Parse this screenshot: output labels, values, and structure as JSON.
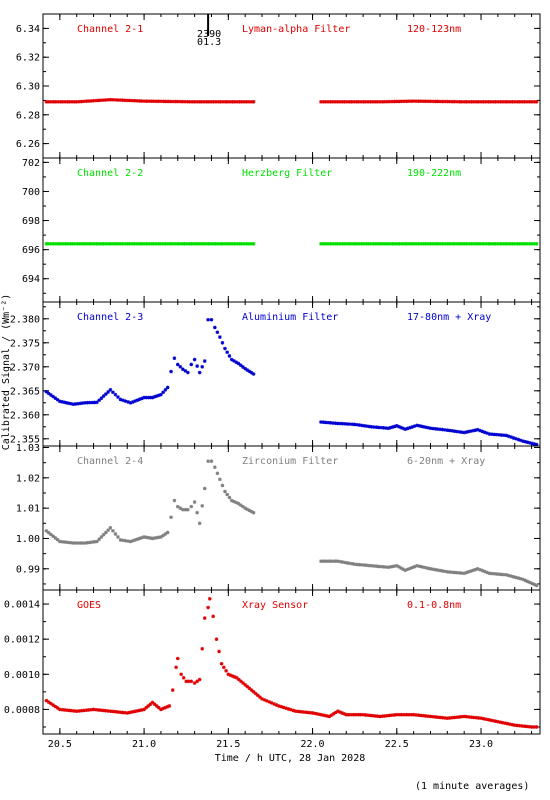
{
  "ylabel": "Calibrated Signal / (Wm⁻²)",
  "xlabel": "Time / h UTC, 28 Jan 2028",
  "footnote": "(1 minute averages)",
  "marker": {
    "x": 21.38,
    "label_top": "2390",
    "label_bottom": "01.3"
  },
  "xaxis": {
    "min": 20.4,
    "max": 23.35,
    "ticks": [
      "20.5",
      "21.0",
      "21.5",
      "22.0",
      "22.5",
      "23.0"
    ]
  },
  "chart_data": [
    {
      "type": "scatter",
      "channel": "Channel 2-1",
      "filter": "Lyman-alpha Filter",
      "band": "120-123nm",
      "color": "#e00000",
      "ylim": [
        6.25,
        6.35
      ],
      "yticks": [
        "6.26",
        "6.28",
        "6.30",
        "6.32",
        "6.34"
      ],
      "series_kind": "flat",
      "segments": [
        {
          "points": [
            [
              20.42,
              6.289
            ],
            [
              20.6,
              6.289
            ],
            [
              20.8,
              6.2905
            ],
            [
              21.0,
              6.2895
            ],
            [
              21.3,
              6.289
            ],
            [
              21.65,
              6.289
            ]
          ]
        },
        {
          "points": [
            [
              22.05,
              6.289
            ],
            [
              22.4,
              6.289
            ],
            [
              22.6,
              6.2895
            ],
            [
              22.9,
              6.289
            ],
            [
              23.33,
              6.289
            ]
          ]
        }
      ]
    },
    {
      "type": "scatter",
      "channel": "Channel 2-2",
      "filter": "Herzberg Filter",
      "band": "190-222nm",
      "color": "#00e000",
      "ylim": [
        692.4,
        702.3
      ],
      "yticks": [
        "694",
        "696",
        "698",
        "700",
        "702"
      ],
      "series_kind": "flat",
      "segments": [
        {
          "points": [
            [
              20.42,
              696.4
            ],
            [
              21.0,
              696.4
            ],
            [
              21.65,
              696.4
            ]
          ]
        },
        {
          "points": [
            [
              22.05,
              696.4
            ],
            [
              22.7,
              696.4
            ],
            [
              23.33,
              696.4
            ]
          ]
        }
      ]
    },
    {
      "type": "scatter",
      "channel": "Channel 2-3",
      "filter": "Aluminium Filter",
      "band": "17-80nm + Xray",
      "color": "#0000d0",
      "ylim": [
        2.3535,
        2.3835
      ],
      "yticks": [
        "2.355",
        "2.360",
        "2.365",
        "2.370",
        "2.375",
        "2.380"
      ],
      "segments": [
        {
          "points": [
            [
              20.42,
              2.3648
            ],
            [
              20.5,
              2.3628
            ],
            [
              20.58,
              2.3622
            ],
            [
              20.65,
              2.3625
            ],
            [
              20.72,
              2.3626
            ],
            [
              20.8,
              2.3652
            ],
            [
              20.86,
              2.3632
            ],
            [
              20.92,
              2.3625
            ],
            [
              21.0,
              2.3636
            ],
            [
              21.05,
              2.3636
            ],
            [
              21.1,
              2.3642
            ],
            [
              21.14,
              2.3657
            ]
          ]
        },
        {
          "points": [
            [
              21.16,
              2.369
            ],
            [
              21.18,
              2.3718
            ],
            [
              21.2,
              2.3705
            ],
            [
              21.23,
              2.3695
            ],
            [
              21.26,
              2.3688
            ],
            [
              21.28,
              2.3705
            ],
            [
              21.3,
              2.3715
            ],
            [
              21.33,
              2.3688
            ],
            [
              21.36,
              2.3712
            ],
            [
              21.38,
              2.3798
            ],
            [
              21.4,
              2.3798
            ],
            [
              21.42,
              2.3782
            ],
            [
              21.45,
              2.3762
            ],
            [
              21.48,
              2.3738
            ],
            [
              21.52,
              2.3715
            ],
            [
              21.56,
              2.3707
            ],
            [
              21.6,
              2.3696
            ],
            [
              21.65,
              2.3685
            ]
          ]
        },
        {
          "points": [
            [
              22.05,
              2.3585
            ],
            [
              22.15,
              2.3582
            ],
            [
              22.25,
              2.358
            ],
            [
              22.35,
              2.3575
            ],
            [
              22.45,
              2.3572
            ],
            [
              22.5,
              2.3577
            ],
            [
              22.55,
              2.357
            ],
            [
              22.62,
              2.3578
            ],
            [
              22.7,
              2.3572
            ],
            [
              22.8,
              2.3568
            ],
            [
              22.9,
              2.3563
            ],
            [
              22.98,
              2.3569
            ],
            [
              23.05,
              2.356
            ],
            [
              23.15,
              2.3557
            ],
            [
              23.25,
              2.3545
            ],
            [
              23.33,
              2.3538
            ]
          ]
        }
      ]
    },
    {
      "type": "scatter",
      "channel": "Channel 2-4",
      "filter": "Zirconium Filter",
      "band": "6-20nm + Xray",
      "color": "#808080",
      "ylim": [
        0.983,
        1.0305
      ],
      "yticks": [
        "0.99",
        "1.00",
        "1.01",
        "1.02",
        "1.03"
      ],
      "segments": [
        {
          "points": [
            [
              20.42,
              1.0025
            ],
            [
              20.5,
              0.999
            ],
            [
              20.58,
              0.9985
            ],
            [
              20.65,
              0.9985
            ],
            [
              20.72,
              0.999
            ],
            [
              20.8,
              1.0035
            ],
            [
              20.86,
              0.9995
            ],
            [
              20.92,
              0.999
            ],
            [
              21.0,
              1.0005
            ],
            [
              21.05,
              1.0
            ],
            [
              21.1,
              1.0005
            ],
            [
              21.14,
              1.002
            ]
          ]
        },
        {
          "points": [
            [
              21.16,
              1.007
            ],
            [
              21.18,
              1.0125
            ],
            [
              21.2,
              1.0105
            ],
            [
              21.23,
              1.0095
            ],
            [
              21.26,
              1.0095
            ],
            [
              21.28,
              1.0105
            ],
            [
              21.3,
              1.012
            ],
            [
              21.33,
              1.005
            ],
            [
              21.36,
              1.0165
            ],
            [
              21.38,
              1.0255
            ],
            [
              21.4,
              1.0255
            ],
            [
              21.42,
              1.0235
            ],
            [
              21.45,
              1.0195
            ],
            [
              21.48,
              1.0155
            ],
            [
              21.52,
              1.0125
            ],
            [
              21.56,
              1.0115
            ],
            [
              21.6,
              1.01
            ],
            [
              21.65,
              1.0085
            ]
          ]
        },
        {
          "points": [
            [
              22.05,
              0.9925
            ],
            [
              22.15,
              0.9925
            ],
            [
              22.25,
              0.9915
            ],
            [
              22.35,
              0.991
            ],
            [
              22.45,
              0.9905
            ],
            [
              22.5,
              0.991
            ],
            [
              22.55,
              0.9895
            ],
            [
              22.62,
              0.991
            ],
            [
              22.7,
              0.99
            ],
            [
              22.8,
              0.989
            ],
            [
              22.9,
              0.9885
            ],
            [
              22.98,
              0.99
            ],
            [
              23.05,
              0.9885
            ],
            [
              23.15,
              0.988
            ],
            [
              23.25,
              0.9865
            ],
            [
              23.33,
              0.9845
            ]
          ]
        }
      ]
    },
    {
      "type": "scatter",
      "channel": "GOES",
      "filter": "Xray Sensor",
      "band": "0.1-0.8nm",
      "color": "#e00000",
      "ylim": [
        0.00066,
        0.00148
      ],
      "yticks": [
        "0.0008",
        "0.0010",
        "0.0012",
        "0.0014"
      ],
      "segments": [
        {
          "points": [
            [
              20.42,
              0.00085
            ],
            [
              20.5,
              0.0008
            ],
            [
              20.6,
              0.00079
            ],
            [
              20.7,
              0.0008
            ],
            [
              20.8,
              0.00079
            ],
            [
              20.9,
              0.00078
            ],
            [
              21.0,
              0.0008
            ],
            [
              21.05,
              0.00084
            ],
            [
              21.1,
              0.0008
            ],
            [
              21.15,
              0.00082
            ],
            [
              21.17,
              0.00091
            ],
            [
              21.19,
              0.00104
            ],
            [
              21.2,
              0.00109
            ],
            [
              21.22,
              0.001
            ],
            [
              21.25,
              0.00096
            ],
            [
              21.28,
              0.00096
            ],
            [
              21.3,
              0.00095
            ],
            [
              21.33,
              0.00097
            ],
            [
              21.36,
              0.00132
            ],
            [
              21.38,
              0.00138
            ],
            [
              21.39,
              0.00143
            ],
            [
              21.41,
              0.00133
            ],
            [
              21.43,
              0.0012
            ],
            [
              21.46,
              0.00106
            ],
            [
              21.5,
              0.001
            ],
            [
              21.55,
              0.00098
            ],
            [
              21.6,
              0.00094
            ],
            [
              21.65,
              0.0009
            ],
            [
              21.7,
              0.00086
            ],
            [
              21.8,
              0.00082
            ],
            [
              21.9,
              0.00079
            ],
            [
              22.0,
              0.00078
            ],
            [
              22.05,
              0.00077
            ],
            [
              22.1,
              0.00076
            ],
            [
              22.15,
              0.00079
            ],
            [
              22.2,
              0.00077
            ],
            [
              22.3,
              0.00077
            ],
            [
              22.4,
              0.00076
            ],
            [
              22.5,
              0.00077
            ],
            [
              22.6,
              0.00077
            ],
            [
              22.7,
              0.00076
            ],
            [
              22.8,
              0.00075
            ],
            [
              22.9,
              0.00076
            ],
            [
              23.0,
              0.00075
            ],
            [
              23.1,
              0.00073
            ],
            [
              23.2,
              0.00071
            ],
            [
              23.3,
              0.0007
            ],
            [
              23.33,
              0.0007
            ]
          ]
        }
      ]
    }
  ]
}
